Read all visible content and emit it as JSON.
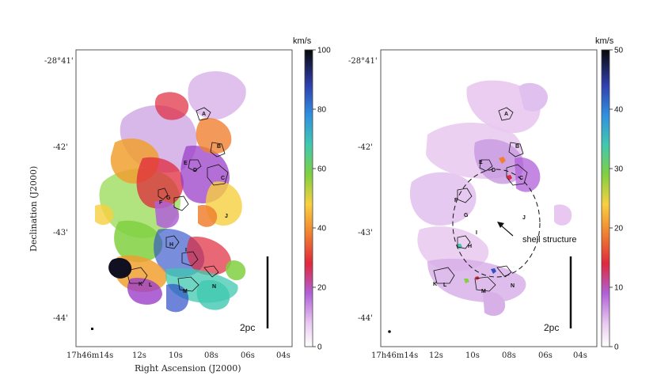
{
  "figure": {
    "ylabel": "Declination (J2000)",
    "xlabel": "Right Ascension (J2000)",
    "dec_ticks": [
      "-28°41'",
      "-42'",
      "-43'",
      "-44'"
    ],
    "ra_ticks": [
      "17h46m14s",
      "12s",
      "10s",
      "08s",
      "06s",
      "04s"
    ]
  },
  "chart_data": [
    {
      "type": "heatmap",
      "panel": "left",
      "colorbar": {
        "unit": "km/s",
        "min": 0,
        "max": 100,
        "ticks": [
          0,
          20,
          40,
          60,
          80,
          100
        ]
      },
      "scale_bar": "2pc",
      "clump_labels": [
        "A",
        "B",
        "C",
        "D",
        "E",
        "F",
        "G",
        "H",
        "I",
        "J",
        "K",
        "L",
        "M",
        "N"
      ]
    },
    {
      "type": "heatmap",
      "panel": "right",
      "colorbar": {
        "unit": "km/s",
        "min": 0,
        "max": 50,
        "ticks": [
          0,
          10,
          20,
          30,
          40,
          50
        ]
      },
      "scale_bar": "2pc",
      "annotation": "shell structure",
      "clump_labels": [
        "A",
        "B",
        "C",
        "D",
        "E",
        "F",
        "G",
        "H",
        "I",
        "J",
        "K",
        "L",
        "M",
        "N"
      ]
    }
  ],
  "colors": {
    "magenta_low": "#e8c8f0",
    "purple": "#9b3fc8",
    "red": "#e0283c",
    "orange": "#f0a030",
    "green": "#7ed040",
    "teal": "#40c8b0",
    "blue": "#3050c8",
    "dark": "#101020"
  }
}
